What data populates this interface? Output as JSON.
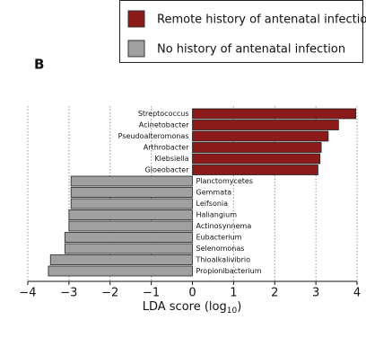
{
  "chart_data": {
    "type": "hbar",
    "panel_label": "B",
    "categories": [
      "Streptococcus",
      "Acinetobacter",
      "Pseudoalteromonas",
      "Arthrobacter",
      "Klebsiella",
      "Gloeobacter",
      "Planctomycetes",
      "Gemmata",
      "Leifsonia",
      "Haliangium",
      "Actinosynnema",
      "Eubacterium",
      "Selenomonas",
      "Thioalkalivibrio",
      "Propionibacterium"
    ],
    "series": [
      {
        "name": "Remote history of antenatal infection",
        "color": "#8b1a1a",
        "values": [
          3.97,
          3.55,
          3.3,
          3.13,
          3.1,
          3.05,
          null,
          null,
          null,
          null,
          null,
          null,
          null,
          null,
          null
        ]
      },
      {
        "name": "No history of antenatal infection",
        "color": "#a0a0a0",
        "values": [
          null,
          null,
          null,
          null,
          null,
          null,
          -2.95,
          -2.95,
          -2.95,
          -3.0,
          -3.0,
          -3.1,
          -3.1,
          -3.45,
          -3.5
        ]
      }
    ],
    "x_label": "LDA score (log",
    "x_label_sub": "10",
    "x_label_end": ")",
    "xlim": [
      -4,
      4
    ],
    "xticks": [
      {
        "value": -4,
        "label": "−4"
      },
      {
        "value": -3,
        "label": "−3"
      },
      {
        "value": -2,
        "label": "−2"
      },
      {
        "value": -1,
        "label": "−1"
      },
      0,
      1,
      2,
      3,
      4
    ],
    "grid": true
  }
}
